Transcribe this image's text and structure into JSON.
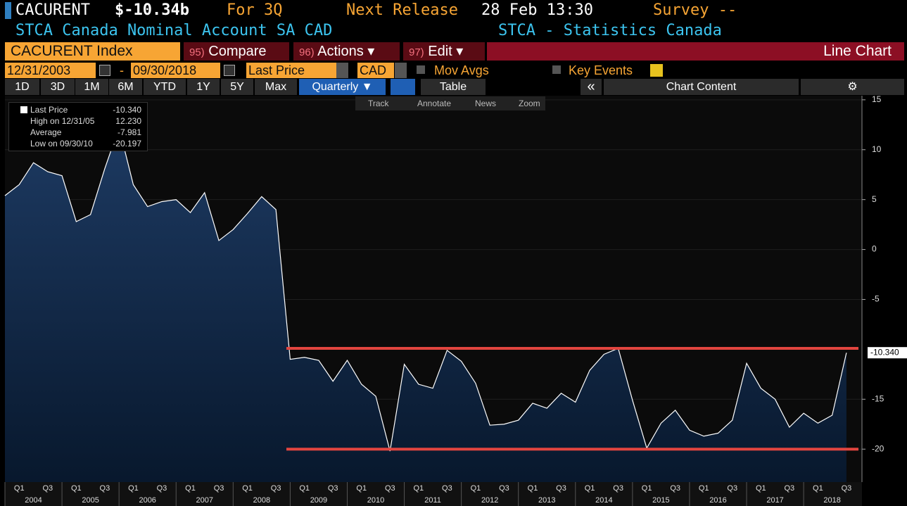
{
  "header": {
    "ticker": "CACURENT",
    "price": "$-10.34b",
    "period": "For 3Q",
    "release_label": "Next Release",
    "release_time": "28 Feb 13:30",
    "survey_label": "Survey --",
    "description": "STCA Canada Nominal Account SA CAD",
    "source": "STCA - Statistics Canada"
  },
  "toolbar": {
    "security": "CACURENT Index",
    "buttons": [
      {
        "num": "95)",
        "label": "Compare"
      },
      {
        "num": "96)",
        "label": "Actions ▾"
      },
      {
        "num": "97)",
        "label": "Edit ▾"
      }
    ],
    "view": "Line Chart",
    "start_date": "12/31/2003",
    "dash": "-",
    "end_date": "09/30/2018",
    "field": "Last Price",
    "currency": "CAD",
    "mov_avgs": "Mov Avgs",
    "key_events": "Key Events",
    "ranges": [
      "1D",
      "3D",
      "1M",
      "6M",
      "YTD",
      "1Y",
      "5Y",
      "Max"
    ],
    "frequency": "Quarterly ▼",
    "table": "Table",
    "collapse": "«",
    "chart_content": "Chart Content",
    "tools": [
      "Track",
      "Annotate",
      "News",
      "Zoom"
    ]
  },
  "legend": [
    {
      "label": "Last Price",
      "value": "-10.340"
    },
    {
      "label": "High on 12/31/05",
      "value": "12.230"
    },
    {
      "label": "Average",
      "value": "-7.981"
    },
    {
      "label": "Low on 09/30/10",
      "value": "-20.197"
    }
  ],
  "chart_data": {
    "type": "line",
    "fill": true,
    "categories": [
      null,
      "Q1",
      null,
      "Q3",
      null,
      "Q1",
      null,
      "Q3",
      null,
      "Q1",
      null,
      "Q3",
      null,
      "Q1",
      null,
      "Q3",
      null,
      "Q1",
      null,
      "Q3",
      null,
      "Q1",
      null,
      "Q3",
      null,
      "Q1",
      null,
      "Q3",
      null,
      "Q1",
      null,
      "Q3",
      null,
      "Q1",
      null,
      "Q3",
      null,
      "Q1",
      null,
      "Q3",
      null,
      "Q1",
      null,
      "Q3",
      null,
      "Q1",
      null,
      "Q3",
      null,
      "Q1",
      null,
      "Q3",
      null,
      "Q1",
      null,
      "Q3",
      null,
      "Q1",
      null,
      "Q3"
    ],
    "years": [
      "2004",
      "2005",
      "2006",
      "2007",
      "2008",
      "2009",
      "2010",
      "2011",
      "2012",
      "2013",
      "2014",
      "2015",
      "2016",
      "2017",
      "2018"
    ],
    "series": [
      {
        "name": "Last Price",
        "color": "#ffffff",
        "values": [
          5.4,
          6.5,
          8.7,
          7.8,
          7.4,
          2.8,
          3.5,
          8.1,
          12.23,
          6.5,
          4.3,
          4.8,
          5.0,
          3.7,
          5.7,
          0.9,
          2.0,
          3.6,
          5.3,
          4.0,
          -11.0,
          -10.8,
          -11.1,
          -13.2,
          -11.1,
          -13.5,
          -14.7,
          -20.197,
          -11.5,
          -13.5,
          -13.9,
          -10.1,
          -11.2,
          -13.4,
          -17.6,
          -17.5,
          -17.1,
          -15.4,
          -15.9,
          -14.4,
          -15.3,
          -12.1,
          -10.5,
          -9.9,
          -15.1,
          -19.9,
          -17.4,
          -16.1,
          -18.1,
          -18.7,
          -18.4,
          -17.1,
          -11.4,
          -13.9,
          -15.0,
          -17.8,
          -16.4,
          -17.4,
          -16.6,
          -10.34
        ]
      }
    ],
    "last_label": "-10.340",
    "hlines": [
      {
        "value": -9.9,
        "color": "#e2453f"
      },
      {
        "value": -20.0,
        "color": "#e2453f"
      }
    ],
    "ylim": [
      -23.3,
      15.2
    ],
    "yticks": [
      15,
      10,
      5,
      0,
      -5,
      -15,
      -20
    ],
    "grid": true
  }
}
